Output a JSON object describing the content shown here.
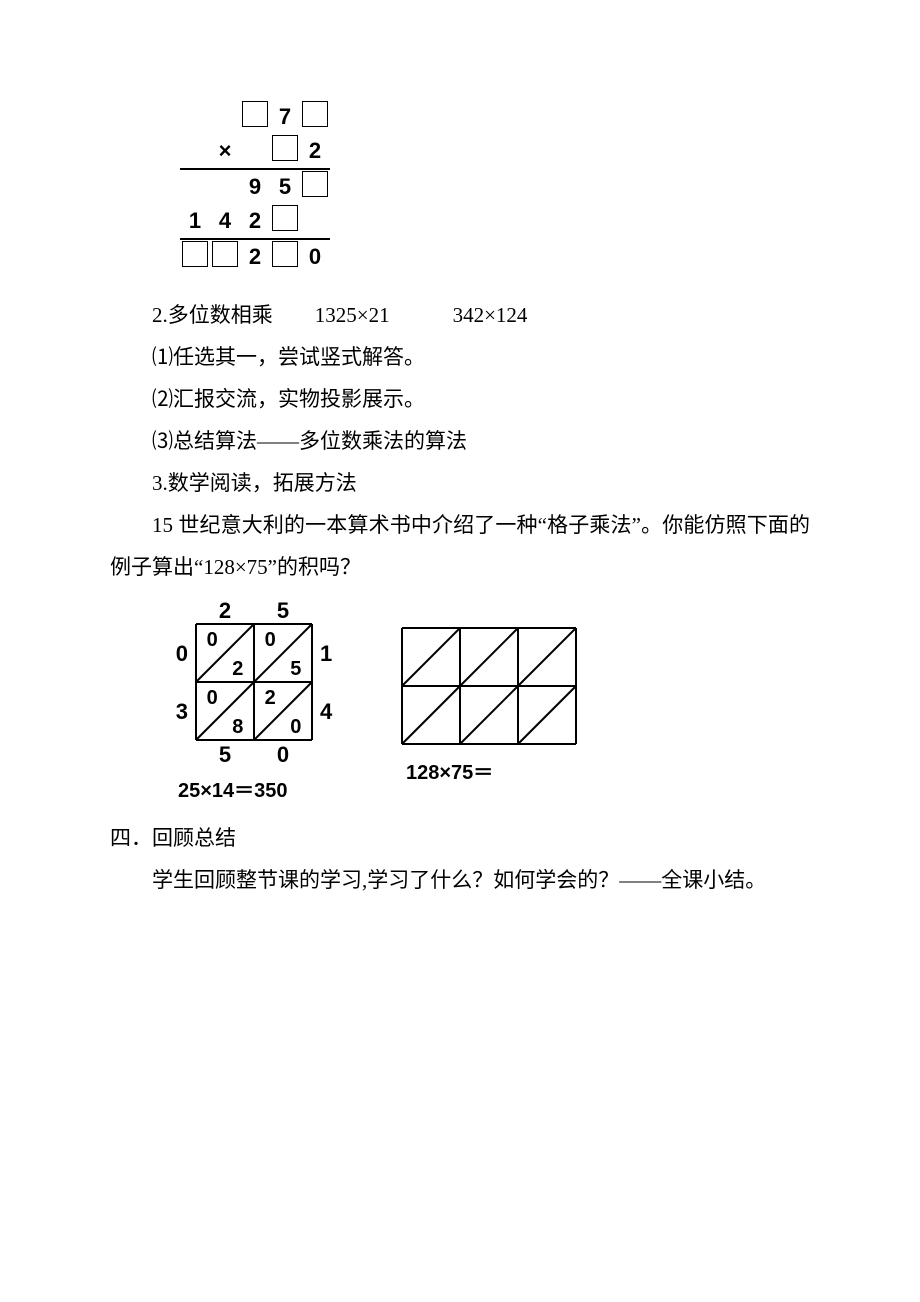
{
  "mult": {
    "r1": {
      "c4": "7"
    },
    "r2": {
      "sym": "×",
      "c5": "2"
    },
    "r3": {
      "c3": "9",
      "c4": "5"
    },
    "r4": {
      "c1": "1",
      "c2": "4",
      "c3": "2"
    },
    "r5": {
      "c3": "2",
      "c5": "0"
    }
  },
  "lines": {
    "p2": "2.多位数相乘  1325×21   342×124",
    "p2a": "⑴任选其一，尝试竖式解答。",
    "p2b": "⑵汇报交流，实物投影展示。",
    "p2c": "⑶总结算法——多位数乘法的算法",
    "p3": "3.数学阅读，拓展方法",
    "p3a": "15 世纪意大利的一本算术书中介绍了一种“格子乘法”。你能仿照下面的例子算出“128×75”的积吗？",
    "g1cap": "25×14＝350",
    "g2cap": "128×75＝",
    "s4h": "四．回顾总结",
    "s4a": "学生回顾整节课的学习,学习了什么？如何学会的？——全课小结。"
  },
  "grid1": {
    "top": [
      "2",
      "5"
    ],
    "left": [
      "0",
      "3"
    ],
    "right": [
      "1",
      "4"
    ],
    "bottom": [
      "5",
      "0"
    ],
    "cells": [
      [
        {
          "u": "0",
          "l": "2"
        },
        {
          "u": "0",
          "l": "5"
        }
      ],
      [
        {
          "u": "0",
          "l": "8"
        },
        {
          "u": "2",
          "l": "0"
        }
      ]
    ],
    "cellSize": 58,
    "labelFont": 22,
    "cellFont": 20
  },
  "grid2": {
    "cols": 3,
    "rows": 2,
    "cellSize": 58
  }
}
